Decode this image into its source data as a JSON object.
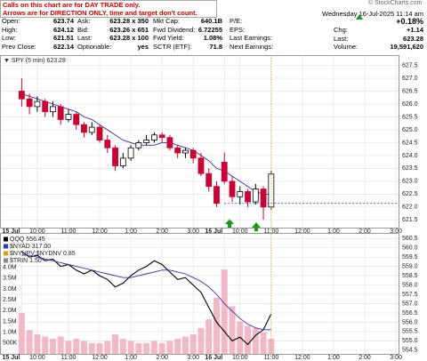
{
  "header": {
    "notice": [
      "Calls on this chart are for DAY TRADE only.",
      "Arrows are for DIRECTION ONLY, time and target don't count."
    ],
    "copyright": "© StockCharts.com",
    "date": "Wednesday 16-Jul-2025 11:14 am",
    "change_pct": "+0.18%",
    "rows": [
      [
        {
          "label": "Open:",
          "value": "623.74"
        },
        {
          "label": "Ask:",
          "value": "623.28 x 350"
        },
        {
          "label": "Mkt Cap:",
          "value": "640.1B"
        },
        {
          "label": "P/E:"
        }
      ],
      [
        {
          "label": "High:",
          "value": "624.12"
        },
        {
          "label": "Bid:",
          "value": "623.26 x 651"
        },
        {
          "label": "Fwd Dividend:",
          "value": "6.72255"
        },
        {
          "label": "EPS:"
        }
      ],
      [
        {
          "label": "Low:",
          "value": "621.51"
        },
        {
          "label": "Last:",
          "value": "623.28 x 100"
        },
        {
          "label": "Fwd Yield:",
          "value": "1.08%"
        },
        {
          "label": "Last Earnings:"
        }
      ],
      [
        {
          "label": "Prev Close:",
          "value": "622.14"
        },
        {
          "label": "Optionable:",
          "value": "yes"
        },
        {
          "label": "SCTR (ETF):",
          "value": "71.8"
        },
        {
          "label": "Next Earnings:"
        }
      ]
    ],
    "stats": [
      {
        "label": "Chg:",
        "value": "+1.14"
      },
      {
        "label": "Last:",
        "value": "623.28"
      },
      {
        "label": "Volume:",
        "value": "19,591,620"
      }
    ]
  },
  "chart_data": [
    {
      "type": "candlestick",
      "label": "▼ SPY (5 min) 623.28",
      "up_color": "#000000",
      "down_color": "#cc0033",
      "ma_color": "#3a2f9e",
      "grid": true,
      "x": [
        0,
        3,
        6,
        9,
        12,
        15,
        18,
        21,
        24,
        27,
        30,
        33,
        36,
        39,
        42,
        45,
        48,
        51,
        54,
        57,
        60,
        63,
        66,
        69,
        72,
        75,
        78,
        81,
        84,
        87,
        90,
        93,
        96
      ],
      "open": [
        626.5,
        626.2,
        625.9,
        626.1,
        625.7,
        625.9,
        625.4,
        625.6,
        625.2,
        624.9,
        625.1,
        624.6,
        624.3,
        623.6,
        623.9,
        624.3,
        624.5,
        624.6,
        624.8,
        624.7,
        624.3,
        624.1,
        624.2,
        623.9,
        623.3,
        622.8,
        623.74,
        623.0,
        622.4,
        622.6,
        622.2,
        622.7,
        622.0
      ],
      "high": [
        627.0,
        626.4,
        626.3,
        626.2,
        626.1,
        626.0,
        625.8,
        625.7,
        625.3,
        625.3,
        625.2,
        624.8,
        624.4,
        624.1,
        624.4,
        624.6,
        624.8,
        624.9,
        624.9,
        624.8,
        624.4,
        624.3,
        624.3,
        624.1,
        623.5,
        623.0,
        624.12,
        623.2,
        622.8,
        622.7,
        622.9,
        622.8,
        623.4
      ],
      "low": [
        625.9,
        625.6,
        625.7,
        625.5,
        625.5,
        625.2,
        625.3,
        625.0,
        624.7,
        624.8,
        624.5,
        624.1,
        623.4,
        623.5,
        623.8,
        624.2,
        624.4,
        624.5,
        624.5,
        624.2,
        623.9,
        623.9,
        623.7,
        623.2,
        622.6,
        622.0,
        622.9,
        622.2,
        622.1,
        622.0,
        622.1,
        621.51,
        621.9
      ],
      "close": [
        626.2,
        625.9,
        626.1,
        625.7,
        625.9,
        625.4,
        625.6,
        625.2,
        624.9,
        625.1,
        624.6,
        624.3,
        623.6,
        623.9,
        624.3,
        624.5,
        624.6,
        624.8,
        624.7,
        624.3,
        624.1,
        624.2,
        623.9,
        623.3,
        622.8,
        622.14,
        623.0,
        622.4,
        622.6,
        622.2,
        622.7,
        622.0,
        623.28
      ],
      "ma": [
        626.4,
        626.3,
        626.2,
        626.1,
        626.0,
        625.9,
        625.8,
        625.7,
        625.5,
        625.4,
        625.2,
        625.0,
        624.8,
        624.6,
        624.5,
        624.4,
        624.4,
        624.4,
        624.5,
        624.5,
        624.4,
        624.3,
        624.2,
        624.0,
        623.8,
        623.5,
        623.4,
        623.2,
        623.0,
        622.8,
        622.6,
        622.5,
        622.5
      ],
      "xlim": [
        -8,
        145
      ],
      "ylim": [
        621.2,
        627.9
      ],
      "xticks": [
        {
          "value": 0,
          "label": "15 Jul"
        },
        {
          "value": 6,
          "label": "10:00"
        },
        {
          "value": 18,
          "label": "11:00"
        },
        {
          "value": 30,
          "label": "12:00"
        },
        {
          "value": 42,
          "label": "1:00"
        },
        {
          "value": 54,
          "label": "2:00"
        },
        {
          "value": 66,
          "label": "3:00"
        },
        {
          "value": 78,
          "label": "16 Jul"
        },
        {
          "value": 84,
          "label": "10:00"
        },
        {
          "value": 96,
          "label": "11:00"
        },
        {
          "value": 108,
          "label": "12:00"
        },
        {
          "value": 120,
          "label": "1:00"
        },
        {
          "value": 132,
          "label": "2:00"
        },
        {
          "value": 144,
          "label": "3:00"
        }
      ],
      "yticks": [
        {
          "value": 621.5,
          "label": "621.5"
        },
        {
          "value": 622,
          "label": "622.0"
        },
        {
          "value": 622.5,
          "label": "622.5"
        },
        {
          "value": 623,
          "label": "623.0"
        },
        {
          "value": 623.5,
          "label": "623.5"
        },
        {
          "value": 624,
          "label": "624.0"
        },
        {
          "value": 624.5,
          "label": "624.5"
        },
        {
          "value": 625,
          "label": "625.0"
        },
        {
          "value": 625.5,
          "label": "625.5"
        },
        {
          "value": 626,
          "label": "626.0"
        },
        {
          "value": 626.5,
          "label": "626.5"
        },
        {
          "value": 627,
          "label": "627.0"
        },
        {
          "value": 627.5,
          "label": "627.5"
        }
      ]
    },
    {
      "type": "line",
      "grid": true,
      "legend": [
        {
          "name": "QQQ 556.45",
          "color": "#000000"
        },
        {
          "name": "$NYAD 317.00",
          "color": "#1f3fbf"
        },
        {
          "name": "$NYUPV:$NYDNV 0.85",
          "color": "#d4a017"
        },
        {
          "name": "$TRIN 1.50",
          "color": "#888888"
        }
      ],
      "x": [
        0,
        3,
        6,
        9,
        12,
        15,
        18,
        21,
        24,
        27,
        30,
        33,
        36,
        39,
        42,
        45,
        48,
        51,
        54,
        57,
        60,
        63,
        66,
        69,
        72,
        75,
        78,
        81,
        84,
        87,
        90,
        93,
        96
      ],
      "series": [
        {
          "color": "#000000",
          "values": [
            559.8,
            559.5,
            559.6,
            559.3,
            559.4,
            559.0,
            559.1,
            558.8,
            558.6,
            558.8,
            558.5,
            558.3,
            557.9,
            558.1,
            558.5,
            558.8,
            559.0,
            559.3,
            559.1,
            558.7,
            558.3,
            558.4,
            558.0,
            557.6,
            556.8,
            556.0,
            555.5,
            555.0,
            555.2,
            554.8,
            555.3,
            555.6,
            556.45
          ]
        },
        {
          "color": "#3a2f9e",
          "values": [
            559.6,
            559.6,
            559.5,
            559.4,
            559.3,
            559.2,
            559.1,
            559.0,
            558.9,
            558.8,
            558.7,
            558.6,
            558.5,
            558.4,
            558.4,
            558.5,
            558.6,
            558.7,
            558.8,
            558.8,
            558.7,
            558.6,
            558.4,
            558.2,
            557.9,
            557.5,
            557.0,
            556.6,
            556.2,
            555.9,
            555.7,
            555.6,
            555.6
          ]
        },
        {
          "type": "bar",
          "axis": "y2",
          "color": "#f0a8b8",
          "values": [
            1900000,
            1100000,
            900000,
            800000,
            700000,
            800000,
            600000,
            700000,
            600000,
            500000,
            500000,
            600000,
            900000,
            700000,
            600000,
            500000,
            500000,
            600000,
            500000,
            600000,
            700000,
            800000,
            900000,
            1200000,
            1600000,
            2600000,
            3900000,
            2200000,
            1500000,
            1300000,
            1200000,
            1000000,
            700000
          ]
        }
      ],
      "xlim": [
        -8,
        145
      ],
      "ylim": [
        554.3,
        560.75
      ],
      "y2lim": [
        0,
        5550000
      ],
      "xticks": [
        {
          "value": 0,
          "label": "15 Jul"
        },
        {
          "value": 6,
          "label": "10:00"
        },
        {
          "value": 18,
          "label": "11:00"
        },
        {
          "value": 30,
          "label": "12:00"
        },
        {
          "value": 42,
          "label": "1:00"
        },
        {
          "value": 54,
          "label": "2:00"
        },
        {
          "value": 66,
          "label": "3:00"
        },
        {
          "value": 78,
          "label": "16 Jul"
        },
        {
          "value": 84,
          "label": "10:00"
        },
        {
          "value": 96,
          "label": "11:00"
        },
        {
          "value": 108,
          "label": "12:00"
        },
        {
          "value": 120,
          "label": "1:00"
        },
        {
          "value": 132,
          "label": "2:00"
        },
        {
          "value": 144,
          "label": "3:00"
        }
      ],
      "yticks": [
        {
          "value": 554.5,
          "label": "554.5"
        },
        {
          "value": 555,
          "label": "555.0"
        },
        {
          "value": 555.5,
          "label": "555.5"
        },
        {
          "value": 556,
          "label": "556.0"
        },
        {
          "value": 556.5,
          "label": "556.5"
        },
        {
          "value": 557,
          "label": "557.0"
        },
        {
          "value": 557.5,
          "label": "557.5"
        },
        {
          "value": 558,
          "label": "558.0"
        },
        {
          "value": 558.5,
          "label": "558.5"
        },
        {
          "value": 559,
          "label": "559.0"
        },
        {
          "value": 559.5,
          "label": "559.5"
        },
        {
          "value": 560,
          "label": "560.0"
        },
        {
          "value": 560.5,
          "label": "560.5"
        }
      ],
      "y2ticks": [
        {
          "value": 500000,
          "label": "500K"
        },
        {
          "value": 1000000,
          "label": "1.0M"
        },
        {
          "value": 1500000,
          "label": "1.5M"
        },
        {
          "value": 2000000,
          "label": "2.0M"
        },
        {
          "value": 2500000,
          "label": "2.5M"
        },
        {
          "value": 3000000,
          "label": "3.0M"
        },
        {
          "value": 3500000,
          "label": "3.5M"
        },
        {
          "value": 4000000,
          "label": "4.0M"
        }
      ]
    }
  ]
}
